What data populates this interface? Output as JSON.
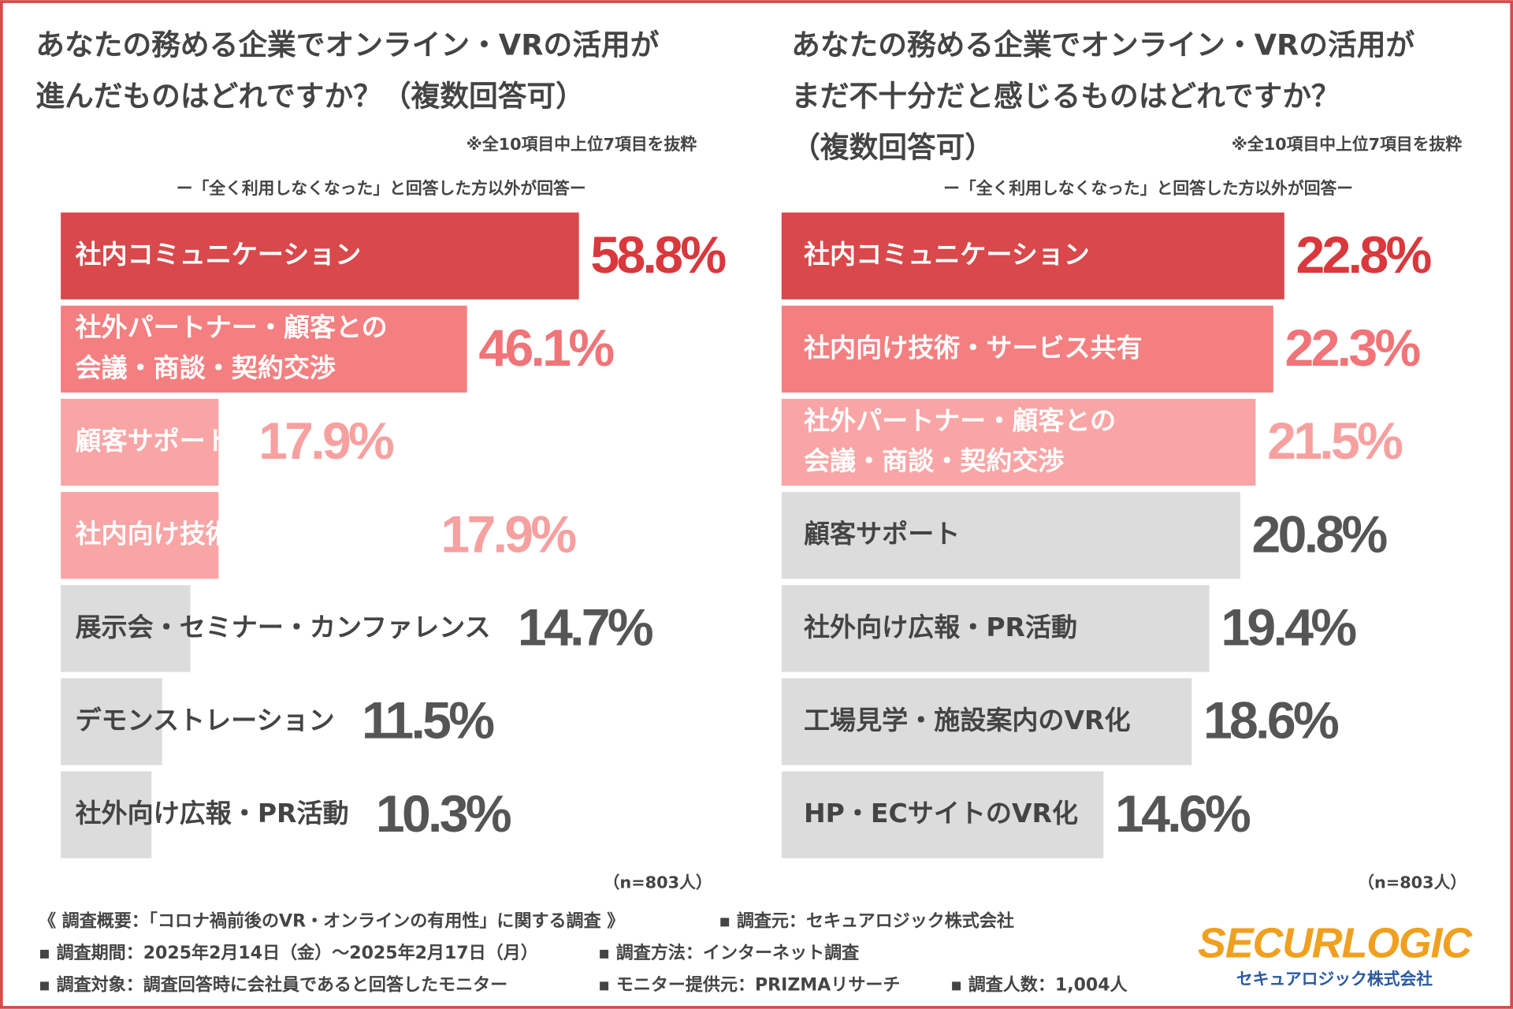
{
  "chart_data": [
    {
      "type": "bar",
      "title": [
        "あなたの務める企業でオンライン・VRの活用が",
        "進んだものはどれですか？（複数回答可）"
      ],
      "note": "※全10項目中上位7項目を抜粋",
      "subtitle": "ー「全く利用しなくなった」と回答した方以外が回答ー",
      "categories": [
        [
          "社内コミュニケーション"
        ],
        [
          "社外パートナー・顧客との",
          "会議・商談・契約交渉"
        ],
        [
          "顧客サポート"
        ],
        [
          "社内向け技術・サービス共有"
        ],
        [
          "展示会・セミナー・カンファレンス"
        ],
        [
          "デモンストレーション"
        ],
        [
          "社外向け広報・PR活動"
        ]
      ],
      "values": [
        58.8,
        46.1,
        17.9,
        17.9,
        14.7,
        11.5,
        10.3
      ],
      "value_labels": [
        "58.8%",
        "46.1%",
        "17.9%",
        "17.9%",
        "14.7%",
        "11.5%",
        "10.3%"
      ],
      "colors": [
        "#d9484a",
        "#f47f80",
        "#f9a5a5",
        "#f9a5a5",
        "#dcdcdc",
        "#dcdcdc",
        "#dcdcdc"
      ],
      "label_colors": [
        "#d9383c",
        "#f07478",
        "#f7a0a0",
        "#f7a0a0",
        "#555555",
        "#555555",
        "#555555"
      ],
      "text_colors": [
        "#ffffff",
        "#ffffff",
        "#ffffff",
        "#ffffff",
        "#444444",
        "#444444",
        "#444444"
      ],
      "sample": "（n=803人）"
    },
    {
      "type": "bar",
      "title": [
        "あなたの務める企業でオンライン・VRの活用が",
        "まだ不十分だと感じるものはどれですか？",
        "（複数回答可）"
      ],
      "note": "※全10項目中上位7項目を抜粋",
      "subtitle": "ー「全く利用しなくなった」と回答した方以外が回答ー",
      "categories": [
        [
          "社内コミュニケーション"
        ],
        [
          "社内向け技術・サービス共有"
        ],
        [
          "社外パートナー・顧客との",
          "会議・商談・契約交渉"
        ],
        [
          "顧客サポート"
        ],
        [
          "社外向け広報・PR活動"
        ],
        [
          "工場見学・施設案内のVR化"
        ],
        [
          "HP・ECサイトのVR化"
        ]
      ],
      "values": [
        22.8,
        22.3,
        21.5,
        20.8,
        19.4,
        18.6,
        14.6
      ],
      "value_labels": [
        "22.8%",
        "22.3%",
        "21.5%",
        "20.8%",
        "19.4%",
        "18.6%",
        "14.6%"
      ],
      "colors": [
        "#d9484a",
        "#f47f80",
        "#f9a5a5",
        "#dcdcdc",
        "#dcdcdc",
        "#dcdcdc",
        "#dcdcdc"
      ],
      "label_colors": [
        "#d9383c",
        "#f07478",
        "#f7a0a0",
        "#555555",
        "#555555",
        "#555555",
        "#555555"
      ],
      "text_colors": [
        "#ffffff",
        "#ffffff",
        "#ffffff",
        "#444444",
        "#444444",
        "#444444",
        "#444444"
      ],
      "sample": "（n=803人）"
    }
  ],
  "footer": [
    [
      "《 調査概要：「コロナ禍前後のVR・オンラインの有用性」に関する調査 》",
      "▪ 調査元：セキュアロジック株式会社"
    ],
    [
      "▪ 調査期間：2025年2月14日（金）〜2025年2月17日（月）",
      "▪ 調査方法：インターネット調査"
    ],
    [
      "▪ 調査対象：調査回答時に会社員であると回答したモニター",
      "▪ モニター提供元：PRIZMAリサーチ",
      "▪ 調査人数：1,004人"
    ]
  ],
  "logo": {
    "name": "SECURLOGIC",
    "company": "セキュアロジック株式会社"
  }
}
